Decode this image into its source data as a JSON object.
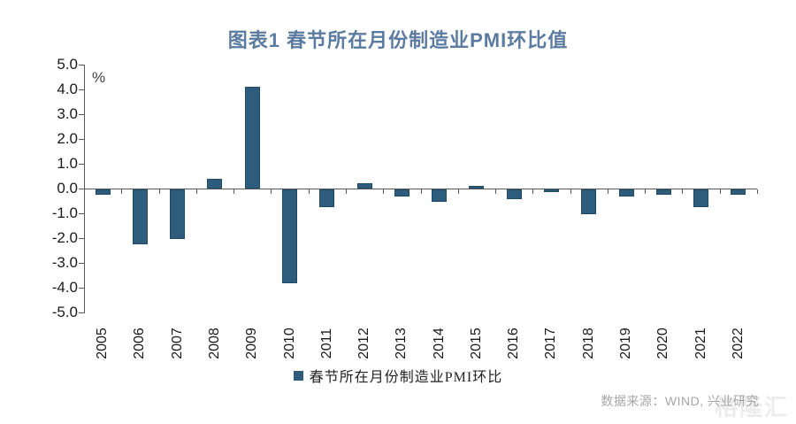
{
  "header": {
    "title": "图表1 春节所在月份制造业PMI环比值",
    "title_color": "#5b7ba0"
  },
  "chart_data": {
    "type": "bar",
    "title": "图表1 春节所在月份制造业PMI环比值",
    "unit_label": "%",
    "categories": [
      "2005",
      "2006",
      "2007",
      "2008",
      "2009",
      "2010",
      "2011",
      "2012",
      "2013",
      "2014",
      "2015",
      "2016",
      "2017",
      "2018",
      "2019",
      "2020",
      "2021",
      "2022"
    ],
    "values": [
      -0.2,
      -2.2,
      -2.0,
      0.4,
      4.1,
      -3.8,
      -0.7,
      0.2,
      -0.3,
      -0.5,
      0.1,
      -0.4,
      -0.1,
      -1.0,
      -0.3,
      -0.2,
      -0.7,
      -0.2
    ],
    "series_name": "春节所在月份制造业PMI环比",
    "xlabel": "",
    "ylabel": "%",
    "ylim": [
      -5.0,
      5.0
    ],
    "ytick_step": 1.0,
    "ytick_labels": [
      "5.0",
      "4.0",
      "3.0",
      "2.0",
      "1.0",
      "0.0",
      "-1.0",
      "-2.0",
      "-3.0",
      "-4.0",
      "-5.0"
    ],
    "bar_color": "#2d5c7d",
    "grid": false,
    "legend_position": "bottom"
  },
  "legend": {
    "label": "春节所在月份制造业PMI环比",
    "marker_color": "#2d5c7d"
  },
  "footer": {
    "source": "数据来源：WIND, 兴业研究"
  },
  "watermark": {
    "text": "格隆汇"
  }
}
